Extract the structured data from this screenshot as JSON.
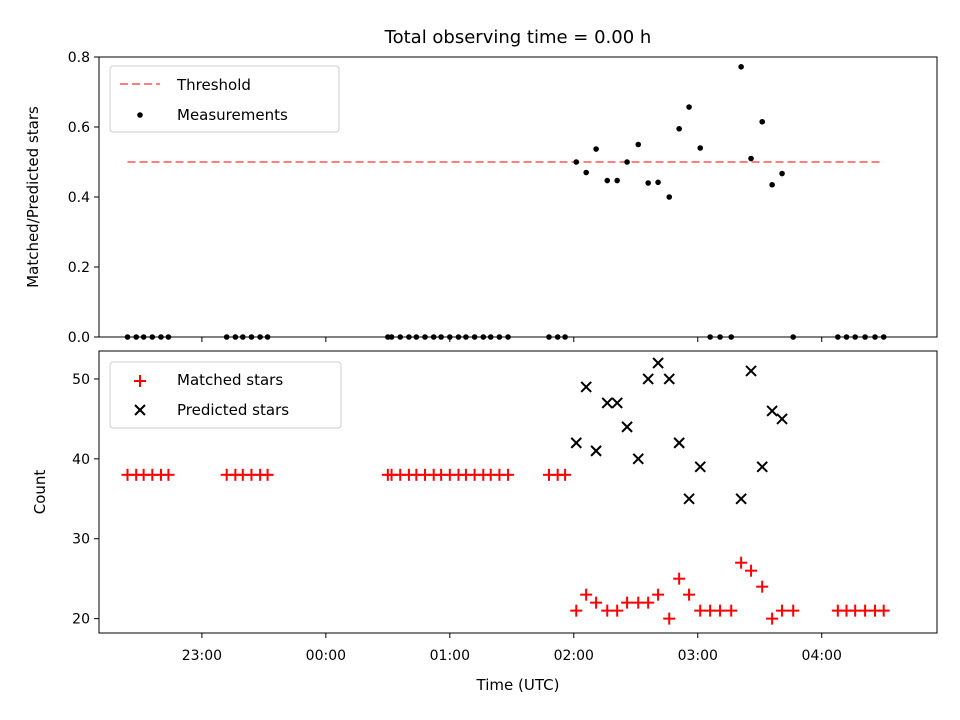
{
  "chart_data": [
    {
      "type": "scatter",
      "panel": "top",
      "title": "Total observing time = 0.00 h",
      "xlabel": "",
      "ylabel": "Matched/Predicted stars",
      "xlim": [
        -1.83,
        4.93
      ],
      "ylim": [
        0,
        0.8
      ],
      "yticks": [
        0,
        0.2,
        0.4,
        0.6,
        0.8
      ],
      "ytick_labels": [
        "0.0",
        "0.2",
        "0.4",
        "0.6",
        "0.8"
      ],
      "xticks": [
        -1,
        0,
        1,
        2,
        3,
        4
      ],
      "x_units": "hours relative to 00:00 UTC",
      "legend_position": "upper-left",
      "series": [
        {
          "name": "Threshold",
          "kind": "dashed-line",
          "color": "#ff7f7f",
          "x": [
            -1.6,
            4.5
          ],
          "y": [
            0.5,
            0.5
          ]
        },
        {
          "name": "Measurements",
          "kind": "dots",
          "color": "#000000",
          "x": [
            -1.6,
            -1.53,
            -1.47,
            -1.4,
            -1.33,
            -1.27,
            -0.8,
            -0.73,
            -0.67,
            -0.6,
            -0.53,
            -0.47,
            0.5,
            0.53,
            0.6,
            0.67,
            0.73,
            0.8,
            0.87,
            0.93,
            1.0,
            1.07,
            1.13,
            1.2,
            1.27,
            1.33,
            1.4,
            1.47,
            1.8,
            1.87,
            1.93,
            2.02,
            2.1,
            2.18,
            2.27,
            2.35,
            2.43,
            2.52,
            2.6,
            2.68,
            2.77,
            2.85,
            2.93,
            3.02,
            3.1,
            3.18,
            3.27,
            3.35,
            3.43,
            3.52,
            3.6,
            3.68,
            3.77,
            4.13,
            4.2,
            4.27,
            4.35,
            4.43,
            4.5
          ],
          "y": [
            0,
            0,
            0,
            0,
            0,
            0,
            0,
            0,
            0,
            0,
            0,
            0,
            0,
            0,
            0,
            0,
            0,
            0,
            0,
            0,
            0,
            0,
            0,
            0,
            0,
            0,
            0,
            0,
            0,
            0,
            0,
            0.5,
            0.47,
            0.537,
            0.447,
            0.447,
            0.5,
            0.55,
            0.44,
            0.442,
            0.4,
            0.595,
            0.657,
            0.54,
            0,
            0,
            0,
            0.772,
            0.51,
            0.615,
            0.435,
            0.467,
            0,
            0,
            0,
            0,
            0,
            0,
            0
          ]
        }
      ]
    },
    {
      "type": "scatter",
      "panel": "bottom",
      "title": "",
      "xlabel": "Time (UTC)",
      "ylabel": "Count",
      "xlim": [
        -1.83,
        4.93
      ],
      "ylim": [
        18.2,
        53.5
      ],
      "yticks": [
        20,
        30,
        40,
        50
      ],
      "ytick_labels": [
        "20",
        "30",
        "40",
        "50"
      ],
      "xticks": [
        -1,
        0,
        1,
        2,
        3,
        4
      ],
      "xtick_labels": [
        "23:00",
        "00:00",
        "01:00",
        "02:00",
        "03:00",
        "04:00"
      ],
      "legend_position": "upper-left",
      "series": [
        {
          "name": "Matched stars",
          "marker": "plus",
          "color": "#ff0000",
          "x": [
            -1.6,
            -1.53,
            -1.47,
            -1.4,
            -1.33,
            -1.27,
            -0.8,
            -0.73,
            -0.67,
            -0.6,
            -0.53,
            -0.47,
            0.5,
            0.53,
            0.6,
            0.67,
            0.73,
            0.8,
            0.87,
            0.93,
            1.0,
            1.07,
            1.13,
            1.2,
            1.27,
            1.33,
            1.4,
            1.47,
            1.8,
            1.87,
            1.93,
            2.02,
            2.1,
            2.18,
            2.27,
            2.35,
            2.43,
            2.52,
            2.6,
            2.68,
            2.77,
            2.85,
            2.93,
            3.02,
            3.1,
            3.18,
            3.27,
            3.35,
            3.43,
            3.52,
            3.6,
            3.68,
            3.77,
            4.13,
            4.2,
            4.27,
            4.35,
            4.43,
            4.5
          ],
          "y": [
            38,
            38,
            38,
            38,
            38,
            38,
            38,
            38,
            38,
            38,
            38,
            38,
            38,
            38,
            38,
            38,
            38,
            38,
            38,
            38,
            38,
            38,
            38,
            38,
            38,
            38,
            38,
            38,
            38,
            38,
            38,
            21,
            23,
            22,
            21,
            21,
            22,
            22,
            22,
            23,
            20,
            25,
            23,
            21,
            21,
            21,
            21,
            27,
            26,
            24,
            20,
            21,
            21,
            21,
            21,
            21,
            21,
            21,
            21
          ]
        },
        {
          "name": "Predicted stars",
          "marker": "x",
          "color": "#000000",
          "x": [
            2.02,
            2.1,
            2.18,
            2.27,
            2.35,
            2.43,
            2.52,
            2.6,
            2.68,
            2.77,
            2.85,
            2.93,
            3.02,
            3.35,
            3.43,
            3.52,
            3.6,
            3.68
          ],
          "y": [
            42,
            49,
            41,
            47,
            47,
            44,
            40,
            50,
            52,
            50,
            42,
            35,
            39,
            35,
            51,
            39,
            46,
            45
          ]
        }
      ]
    }
  ]
}
